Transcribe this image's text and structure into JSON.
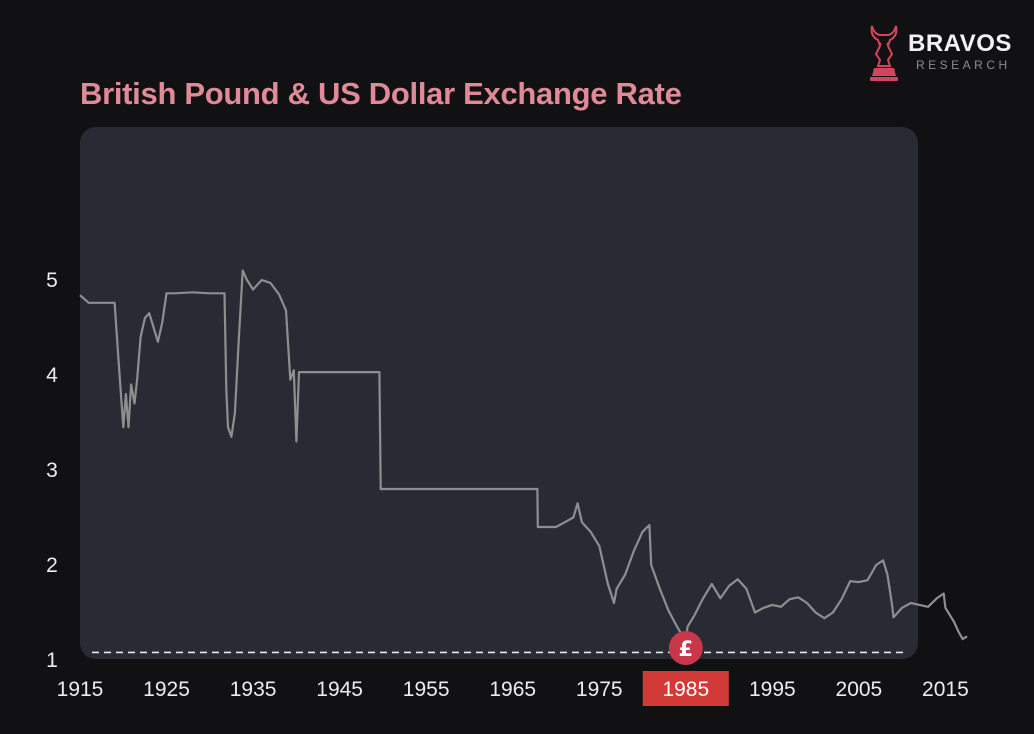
{
  "brand": {
    "name": "BRAVOS",
    "subtitle": "RESEARCH",
    "icon": "bull-knight-logo-icon",
    "color": "#d2455a"
  },
  "colors": {
    "background": "#111114",
    "plot_bg": "#282b33",
    "line": "#8e8e8e",
    "title": "#e08a98",
    "highlight": "#d23a38",
    "marker": "#c9374b"
  },
  "marker": {
    "label": "£",
    "x": 1985
  },
  "chart_data": {
    "type": "line",
    "title": "British Pound & US Dollar Exchange Rate",
    "xlabel": "",
    "ylabel": "",
    "xlim": [
      1915,
      2022
    ],
    "ylim": [
      1,
      6
    ],
    "grid": false,
    "x_ticks": [
      "1915",
      "1925",
      "1935",
      "1945",
      "1955",
      "1965",
      "1975",
      "1985",
      "1995",
      "2005",
      "2015"
    ],
    "y_ticks": [
      "1",
      "2",
      "3",
      "4",
      "5"
    ],
    "highlighted_x_tick": "1985",
    "reference_line": {
      "y": 1.08,
      "style": "dashed"
    },
    "series": [
      {
        "x": [
          1915,
          1916,
          1917,
          1919,
          1919.5,
          1920,
          1920.3,
          1920.6,
          1920.9,
          1921.3,
          1921.6,
          1922,
          1922.5,
          1923,
          1923.5,
          1924,
          1924.5,
          1925,
          1926,
          1928,
          1930,
          1931,
          1931.7,
          1931.9,
          1932.1,
          1932.5,
          1932.9,
          1933.3,
          1933.8,
          1934.3,
          1935,
          1936,
          1937,
          1938,
          1938.8,
          1939.3,
          1939.7,
          1940,
          1940.3,
          1941,
          1945,
          1949.6,
          1949.75,
          1955,
          1960,
          1967.85,
          1967.9,
          1970,
          1971,
          1972,
          1972.5,
          1973,
          1974,
          1975,
          1976,
          1976.7,
          1977,
          1978,
          1979,
          1980,
          1980.8,
          1981,
          1982,
          1983,
          1984,
          1985,
          1985.2,
          1986,
          1987,
          1988,
          1989,
          1990,
          1991,
          1992,
          1993,
          1994,
          1995,
          1996,
          1997,
          1998,
          1999,
          2000,
          2001,
          2002,
          2003,
          2004,
          2005,
          2006,
          2007,
          2007.8,
          2008.3,
          2008.8,
          2009,
          2010,
          2011,
          2012,
          2013,
          2014,
          2014.8,
          2015,
          2016,
          2016.5,
          2017,
          2017.5
        ],
        "y": [
          4.84,
          4.76,
          4.76,
          4.76,
          4.1,
          3.45,
          3.8,
          3.45,
          3.9,
          3.7,
          3.95,
          4.4,
          4.6,
          4.65,
          4.5,
          4.35,
          4.55,
          4.86,
          4.86,
          4.87,
          4.86,
          4.86,
          4.86,
          3.85,
          3.45,
          3.35,
          3.6,
          4.3,
          5.1,
          5.0,
          4.9,
          5.0,
          4.97,
          4.85,
          4.68,
          3.95,
          4.05,
          3.3,
          4.03,
          4.03,
          4.03,
          4.03,
          2.8,
          2.8,
          2.8,
          2.8,
          2.4,
          2.4,
          2.45,
          2.5,
          2.65,
          2.45,
          2.35,
          2.2,
          1.8,
          1.6,
          1.75,
          1.9,
          2.15,
          2.35,
          2.42,
          2.0,
          1.75,
          1.52,
          1.35,
          1.2,
          1.35,
          1.47,
          1.65,
          1.8,
          1.65,
          1.78,
          1.85,
          1.75,
          1.5,
          1.55,
          1.58,
          1.56,
          1.64,
          1.66,
          1.6,
          1.5,
          1.44,
          1.5,
          1.64,
          1.83,
          1.82,
          1.84,
          2.0,
          2.05,
          1.9,
          1.6,
          1.45,
          1.55,
          1.6,
          1.58,
          1.56,
          1.65,
          1.7,
          1.55,
          1.4,
          1.3,
          1.22,
          1.25
        ]
      }
    ]
  }
}
